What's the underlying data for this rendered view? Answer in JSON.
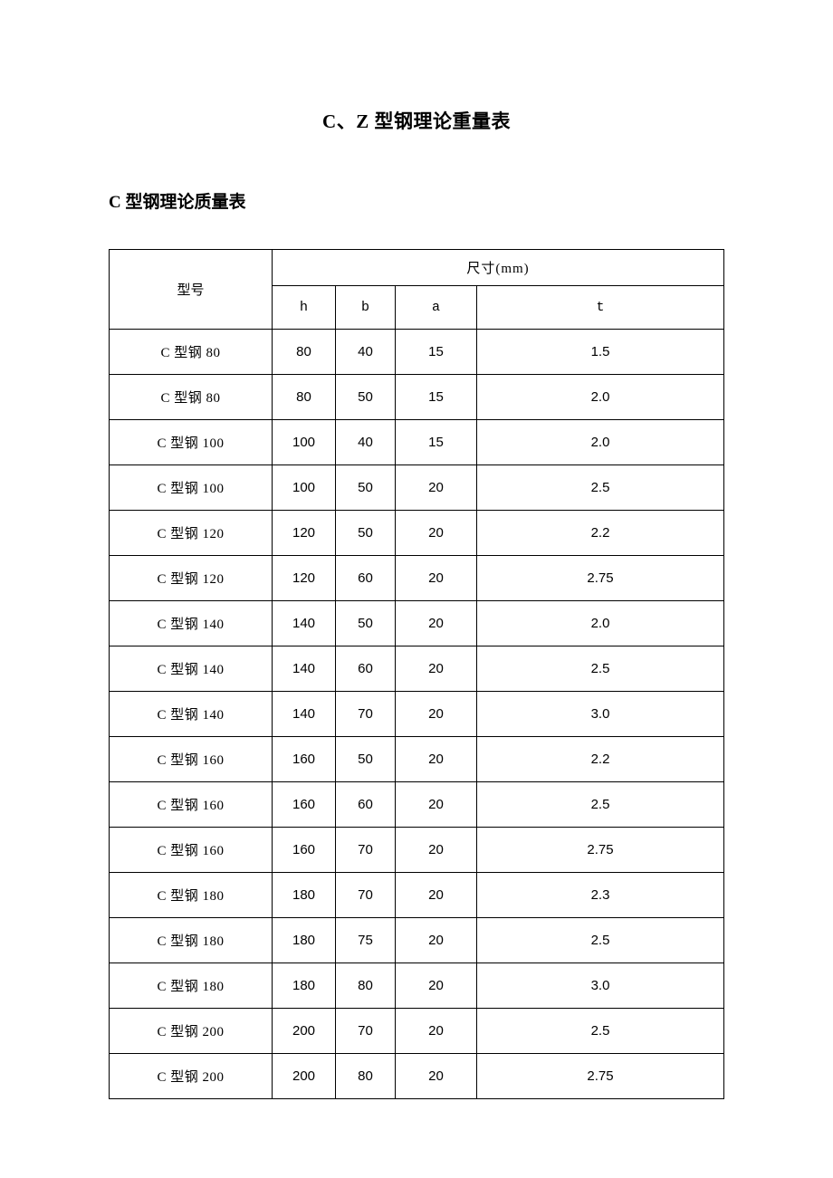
{
  "title": "C、Z 型钢理论重量表",
  "subtitle": "C 型钢理论质量表",
  "table": {
    "model_header": "型号",
    "dim_header": "尺寸(mm)",
    "columns": {
      "h": "h",
      "b": "b",
      "a": "a",
      "t": "t"
    },
    "col_widths": {
      "model": 180,
      "h": 70,
      "b": 66,
      "a": 90
    },
    "border_color": "#000000",
    "background_color": "#ffffff",
    "text_color": "#000000",
    "font_size_body": 15,
    "font_size_title": 21,
    "font_size_subtitle": 19,
    "header_row_height": 40,
    "subheader_row_height": 48,
    "body_row_height": 50,
    "rows": [
      {
        "model": "C 型钢 80",
        "h": "80",
        "b": "40",
        "a": "15",
        "t": "1.5"
      },
      {
        "model": "C 型钢 80",
        "h": "80",
        "b": "50",
        "a": "15",
        "t": "2.0"
      },
      {
        "model": "C 型钢 100",
        "h": "100",
        "b": "40",
        "a": "15",
        "t": "2.0"
      },
      {
        "model": "C 型钢 100",
        "h": "100",
        "b": "50",
        "a": "20",
        "t": "2.5"
      },
      {
        "model": "C 型钢 120",
        "h": "120",
        "b": "50",
        "a": "20",
        "t": "2.2"
      },
      {
        "model": "C 型钢 120",
        "h": "120",
        "b": "60",
        "a": "20",
        "t": "2.75"
      },
      {
        "model": "C 型钢 140",
        "h": "140",
        "b": "50",
        "a": "20",
        "t": "2.0"
      },
      {
        "model": "C 型钢 140",
        "h": "140",
        "b": "60",
        "a": "20",
        "t": "2.5"
      },
      {
        "model": "C 型钢 140",
        "h": "140",
        "b": "70",
        "a": "20",
        "t": "3.0"
      },
      {
        "model": "C 型钢 160",
        "h": "160",
        "b": "50",
        "a": "20",
        "t": "2.2"
      },
      {
        "model": "C 型钢 160",
        "h": "160",
        "b": "60",
        "a": "20",
        "t": "2.5"
      },
      {
        "model": "C 型钢 160",
        "h": "160",
        "b": "70",
        "a": "20",
        "t": "2.75"
      },
      {
        "model": "C 型钢 180",
        "h": "180",
        "b": "70",
        "a": "20",
        "t": "2.3"
      },
      {
        "model": "C 型钢 180",
        "h": "180",
        "b": "75",
        "a": "20",
        "t": "2.5"
      },
      {
        "model": "C 型钢 180",
        "h": "180",
        "b": "80",
        "a": "20",
        "t": "3.0"
      },
      {
        "model": "C 型钢 200",
        "h": "200",
        "b": "70",
        "a": "20",
        "t": "2.5"
      },
      {
        "model": "C 型钢 200",
        "h": "200",
        "b": "80",
        "a": "20",
        "t": "2.75"
      }
    ]
  }
}
